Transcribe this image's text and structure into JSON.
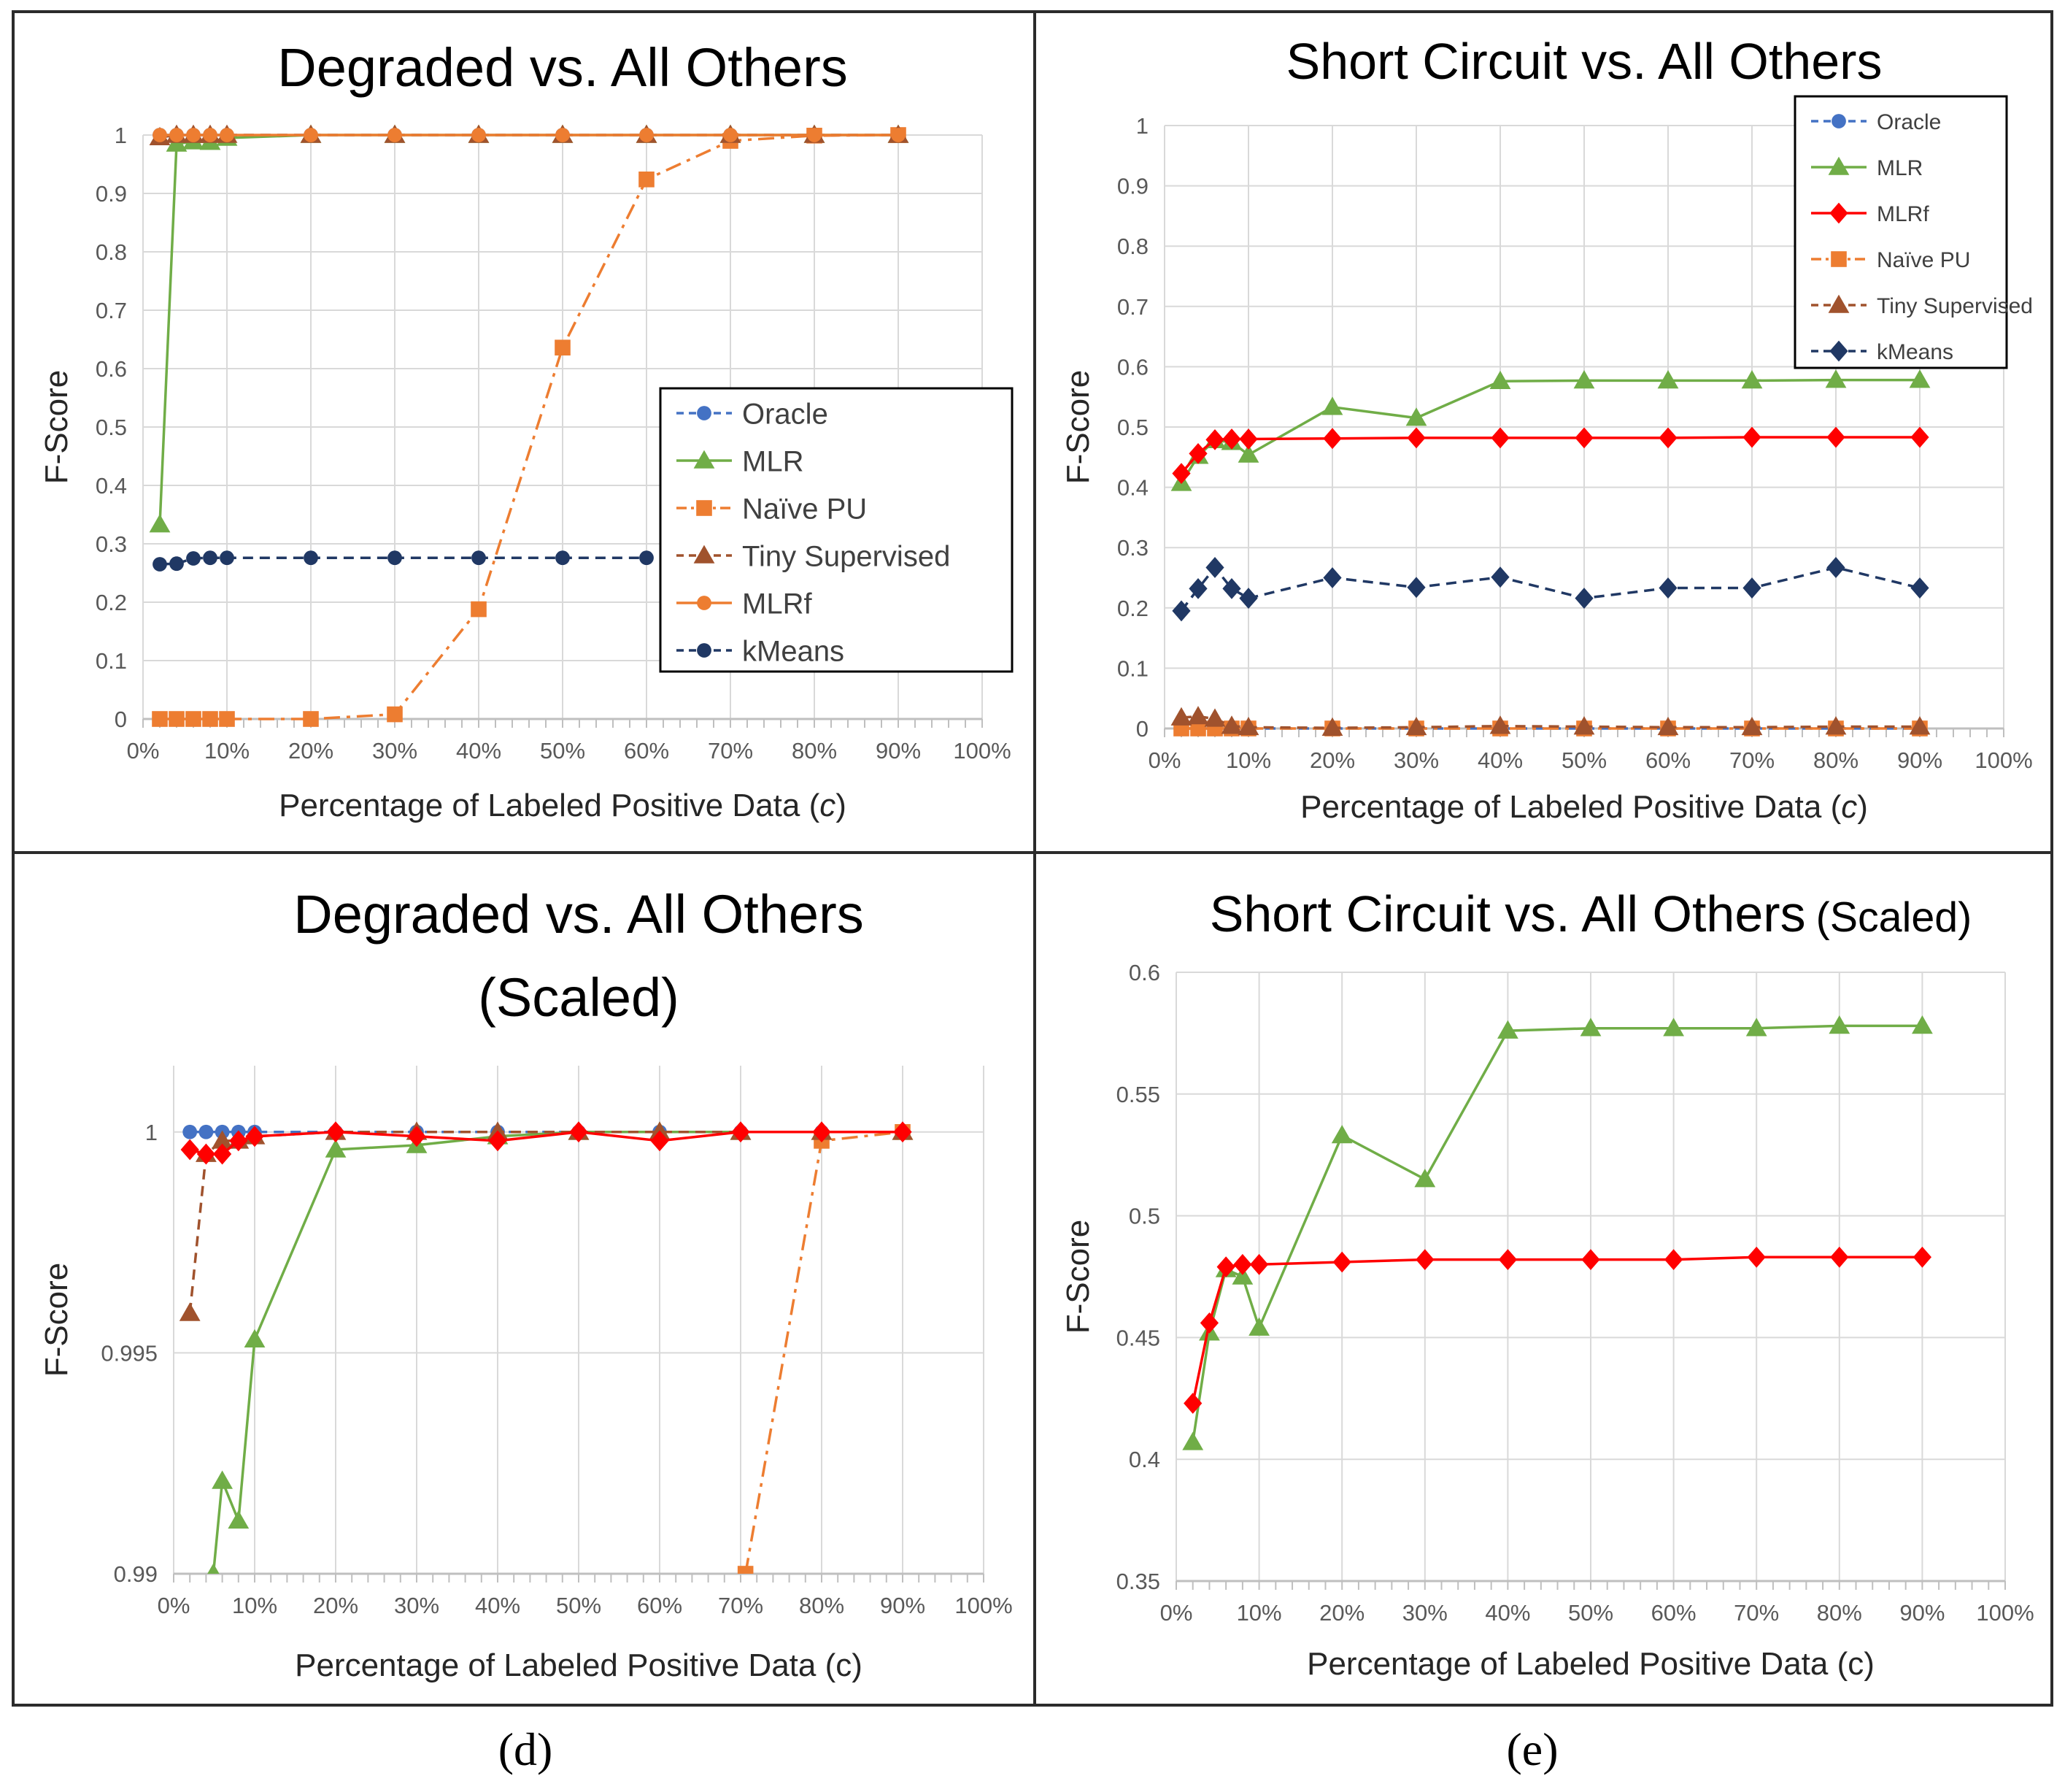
{
  "chart_data": [
    {
      "id": "a",
      "type": "line",
      "title": "Degraded vs. All Others",
      "title_line2": "",
      "title_suffix": "",
      "xlabel": "Percentage of Labeled Positive Data (",
      "xlabel_var": "c",
      "xlabel_end": ")",
      "ylabel": "F-Score",
      "xlim": [
        0,
        100
      ],
      "ylim": [
        0,
        1
      ],
      "yticks": [
        0,
        0.1,
        0.2,
        0.3,
        0.4,
        0.5,
        0.6,
        0.7,
        0.8,
        0.9,
        1
      ],
      "ytick_labels": [
        "0",
        "0.1",
        "0.2",
        "0.3",
        "0.4",
        "0.5",
        "0.6",
        "0.7",
        "0.8",
        "0.9",
        "1"
      ],
      "xticks": [
        0,
        10,
        20,
        30,
        40,
        50,
        60,
        70,
        80,
        90,
        100
      ],
      "xtick_labels": [
        "0%",
        "10%",
        "20%",
        "30%",
        "40%",
        "50%",
        "60%",
        "70%",
        "80%",
        "90%",
        "100%"
      ],
      "grid": true,
      "legend": {
        "position": "right-middle",
        "entries": [
          "Oracle",
          "MLR",
          "Naïve PU",
          "Tiny Supervised",
          "MLRf",
          "kMeans"
        ]
      },
      "series": [
        {
          "name": "Oracle",
          "color": "#4472C4",
          "marker": "circle",
          "dash": "dash",
          "x": [
            2,
            4,
            6,
            8,
            10,
            20,
            30,
            40,
            50,
            60,
            70,
            80,
            90
          ],
          "values": [
            1,
            1,
            1,
            1,
            1,
            1,
            1,
            1,
            1,
            1,
            1,
            1,
            1
          ]
        },
        {
          "name": "MLR",
          "color": "#70AD47",
          "marker": "triangle",
          "dash": "solid",
          "x": [
            2,
            4,
            6,
            8,
            10,
            20,
            30,
            40,
            50,
            60,
            70,
            80,
            90
          ],
          "values": [
            0.333,
            0.985,
            0.989,
            0.988,
            0.995,
            1,
            1,
            1,
            1,
            1,
            1,
            1,
            1
          ]
        },
        {
          "name": "Naïve PU",
          "color": "#ED7D31",
          "marker": "square",
          "dash": "dashdot",
          "x": [
            2,
            4,
            6,
            8,
            10,
            20,
            30,
            40,
            50,
            60,
            70,
            80,
            90
          ],
          "values": [
            0,
            0,
            0,
            0,
            0,
            0,
            0.008,
            0.188,
            0.636,
            0.924,
            0.99,
            0.999,
            1
          ]
        },
        {
          "name": "Tiny Supervised",
          "color": "#A0522D",
          "marker": "triangle",
          "dash": "dash",
          "x": [
            2,
            4,
            6,
            8,
            10,
            20,
            30,
            40,
            50,
            60,
            70,
            80,
            90
          ],
          "values": [
            0.996,
            1,
            1,
            1,
            1,
            1,
            1,
            1,
            1,
            1,
            1,
            1,
            1
          ]
        },
        {
          "name": "MLRf",
          "color": "#ED7D31",
          "marker": "circle",
          "dash": "solid",
          "x": [
            2,
            4,
            6,
            8,
            10,
            20,
            30,
            40,
            50,
            60,
            70,
            80,
            90
          ],
          "values": [
            1,
            1,
            1,
            1,
            1,
            1,
            1,
            1,
            1,
            1,
            1,
            1,
            1
          ]
        },
        {
          "name": "kMeans",
          "color": "#203864",
          "marker": "circle",
          "dash": "dash",
          "x": [
            2,
            4,
            6,
            8,
            10,
            20,
            30,
            40,
            50,
            60
          ],
          "values": [
            0.265,
            0.266,
            0.275,
            0.276,
            0.276,
            0.276,
            0.276,
            0.276,
            0.276,
            0.276
          ]
        }
      ]
    },
    {
      "id": "b",
      "type": "line",
      "title": "Short Circuit vs. All Others",
      "title_line2": "",
      "title_suffix": "",
      "xlabel": "Percentage of Labeled Positive Data (",
      "xlabel_var": "c",
      "xlabel_end": ")",
      "ylabel": "F-Score",
      "xlim": [
        0,
        100
      ],
      "ylim": [
        0,
        1
      ],
      "yticks": [
        0,
        0.1,
        0.2,
        0.3,
        0.4,
        0.5,
        0.6,
        0.7,
        0.8,
        0.9,
        1
      ],
      "ytick_labels": [
        "0",
        "0.1",
        "0.2",
        "0.3",
        "0.4",
        "0.5",
        "0.6",
        "0.7",
        "0.8",
        "0.9",
        "1"
      ],
      "xticks": [
        0,
        10,
        20,
        30,
        40,
        50,
        60,
        70,
        80,
        90,
        100
      ],
      "xtick_labels": [
        "0%",
        "10%",
        "20%",
        "30%",
        "40%",
        "50%",
        "60%",
        "70%",
        "80%",
        "90%",
        "100%"
      ],
      "grid": true,
      "legend": {
        "position": "top-right",
        "entries": [
          "Oracle",
          "MLR",
          "MLRf",
          "Naïve PU",
          "Tiny Supervised",
          "kMeans"
        ]
      },
      "series": [
        {
          "name": "Oracle",
          "color": "#4472C4",
          "marker": "circle",
          "dash": "dash",
          "x": [
            2,
            4,
            6,
            8,
            10,
            20,
            30,
            40,
            50,
            60,
            70,
            80,
            90
          ],
          "values": [
            0,
            0,
            0,
            0,
            0,
            0,
            0,
            0,
            0,
            0,
            0,
            0,
            0
          ]
        },
        {
          "name": "MLR",
          "color": "#70AD47",
          "marker": "triangle",
          "dash": "solid",
          "x": [
            2,
            4,
            6,
            8,
            10,
            20,
            30,
            40,
            50,
            60,
            70,
            80,
            90
          ],
          "values": [
            0.407,
            0.452,
            0.478,
            0.475,
            0.454,
            0.533,
            0.515,
            0.576,
            0.577,
            0.577,
            0.577,
            0.578,
            0.578
          ]
        },
        {
          "name": "MLRf",
          "color": "#FF0000",
          "marker": "diamond",
          "dash": "solid",
          "x": [
            2,
            4,
            6,
            8,
            10,
            20,
            30,
            40,
            50,
            60,
            70,
            80,
            90
          ],
          "values": [
            0.423,
            0.456,
            0.479,
            0.48,
            0.48,
            0.481,
            0.482,
            0.482,
            0.482,
            0.482,
            0.483,
            0.483,
            0.483
          ]
        },
        {
          "name": "Naïve PU",
          "color": "#ED7D31",
          "marker": "square",
          "dash": "dashdot",
          "x": [
            2,
            4,
            6,
            8,
            10,
            20,
            30,
            40,
            50,
            60,
            70,
            80,
            90
          ],
          "values": [
            0,
            0,
            0,
            0,
            0,
            0,
            0,
            0,
            0,
            0,
            0,
            0,
            0
          ]
        },
        {
          "name": "Tiny Supervised",
          "color": "#A0522D",
          "marker": "triangle",
          "dash": "dash",
          "x": [
            2,
            4,
            6,
            8,
            10,
            20,
            30,
            40,
            50,
            60,
            70,
            80,
            90
          ],
          "values": [
            0.018,
            0.02,
            0.016,
            0.004,
            0.002,
            0.001,
            0.002,
            0.004,
            0.003,
            0.002,
            0.002,
            0.003,
            0.003
          ]
        },
        {
          "name": "kMeans",
          "color": "#203864",
          "marker": "diamond",
          "dash": "dash",
          "x": [
            2,
            4,
            6,
            8,
            10,
            20,
            30,
            40,
            50,
            60,
            70,
            80,
            90
          ],
          "values": [
            0.195,
            0.232,
            0.267,
            0.232,
            0.216,
            0.25,
            0.234,
            0.251,
            0.216,
            0.233,
            0.233,
            0.267,
            0.233
          ]
        }
      ]
    },
    {
      "id": "c",
      "type": "line",
      "title": "Degraded vs. All Others",
      "title_line2": "(Scaled)",
      "title_suffix": "",
      "xlabel": "Percentage of Labeled Positive Data (c)",
      "xlabel_var": "",
      "xlabel_end": "",
      "ylabel": "F-Score",
      "xlim": [
        0,
        100
      ],
      "ylim": [
        0.99,
        1.0015
      ],
      "yticks": [
        0.99,
        0.995,
        1
      ],
      "ytick_labels": [
        "0.99",
        "0.995",
        "1"
      ],
      "xticks": [
        0,
        10,
        20,
        30,
        40,
        50,
        60,
        70,
        80,
        90,
        100
      ],
      "xtick_labels": [
        "0%",
        "10%",
        "20%",
        "30%",
        "40%",
        "50%",
        "60%",
        "70%",
        "80%",
        "90%",
        "100%"
      ],
      "grid": true,
      "legend": {
        "position": "none",
        "entries": []
      },
      "series": [
        {
          "name": "Oracle",
          "color": "#4472C4",
          "marker": "circle",
          "dash": "dash",
          "x": [
            2,
            4,
            6,
            8,
            10,
            20,
            30,
            40,
            50,
            60,
            70,
            80,
            90
          ],
          "values": [
            1,
            1,
            1,
            1,
            1,
            1,
            1,
            1,
            1,
            1,
            1,
            1,
            1
          ]
        },
        {
          "name": "MLR",
          "color": "#70AD47",
          "marker": "triangle",
          "dash": "solid",
          "x": [
            4.9,
            6,
            8,
            10,
            20,
            30,
            40,
            50,
            60,
            70,
            80,
            90
          ],
          "values": [
            0.99,
            0.9921,
            0.9912,
            0.9953,
            0.9996,
            0.9997,
            0.9999,
            1,
            1,
            1,
            1,
            1
          ]
        },
        {
          "name": "Naïve PU",
          "color": "#ED7D31",
          "marker": "square",
          "dash": "dashdot",
          "x": [
            70.6,
            80,
            90
          ],
          "values": [
            0.99,
            0.9998,
            1
          ]
        },
        {
          "name": "Tiny Supervised",
          "color": "#A0522D",
          "marker": "triangle",
          "dash": "dash",
          "x": [
            2,
            4,
            6,
            8,
            10,
            20,
            30,
            40,
            50,
            60,
            70,
            80,
            90
          ],
          "values": [
            0.9959,
            0.9995,
            0.9998,
            0.9998,
            0.9999,
            1,
            1,
            1,
            1,
            1,
            1,
            1,
            1
          ]
        },
        {
          "name": "MLRf",
          "color": "#FF0000",
          "marker": "diamond",
          "dash": "solid",
          "x": [
            2,
            4,
            6,
            8,
            10,
            20,
            30,
            40,
            50,
            60,
            70,
            80,
            90
          ],
          "values": [
            0.9996,
            0.9995,
            0.9995,
            0.9998,
            0.9999,
            1,
            0.9999,
            0.9998,
            1,
            0.9998,
            1,
            1,
            1
          ]
        }
      ]
    },
    {
      "id": "d",
      "type": "line",
      "title": "Short Circuit vs. All Others",
      "title_line2": "",
      "title_suffix": "(Scaled)",
      "xlabel": "Percentage of Labeled Positive Data (c)",
      "xlabel_var": "",
      "xlabel_end": "",
      "ylabel": "F-Score",
      "xlim": [
        0,
        100
      ],
      "ylim": [
        0.35,
        0.6
      ],
      "yticks": [
        0.35,
        0.4,
        0.45,
        0.5,
        0.55,
        0.6
      ],
      "ytick_labels": [
        "0.35",
        "0.4",
        "0.45",
        "0.5",
        "0.55",
        "0.6"
      ],
      "xticks": [
        0,
        10,
        20,
        30,
        40,
        50,
        60,
        70,
        80,
        90,
        100
      ],
      "xtick_labels": [
        "0%",
        "10%",
        "20%",
        "30%",
        "40%",
        "50%",
        "60%",
        "70%",
        "80%",
        "90%",
        "100%"
      ],
      "grid": true,
      "legend": {
        "position": "none",
        "entries": []
      },
      "series": [
        {
          "name": "MLR",
          "color": "#70AD47",
          "marker": "triangle",
          "dash": "solid",
          "x": [
            2,
            4,
            6,
            8,
            10,
            20,
            30,
            40,
            50,
            60,
            70,
            80,
            90
          ],
          "values": [
            0.407,
            0.452,
            0.478,
            0.475,
            0.454,
            0.533,
            0.515,
            0.576,
            0.577,
            0.577,
            0.577,
            0.578,
            0.578
          ]
        },
        {
          "name": "MLRf",
          "color": "#FF0000",
          "marker": "diamond",
          "dash": "solid",
          "x": [
            2,
            4,
            6,
            8,
            10,
            20,
            30,
            40,
            50,
            60,
            70,
            80,
            90
          ],
          "values": [
            0.423,
            0.456,
            0.479,
            0.48,
            0.48,
            0.481,
            0.482,
            0.482,
            0.482,
            0.482,
            0.483,
            0.483,
            0.483
          ]
        }
      ]
    }
  ],
  "captions": {
    "left": "(d)",
    "right": "(e)"
  }
}
